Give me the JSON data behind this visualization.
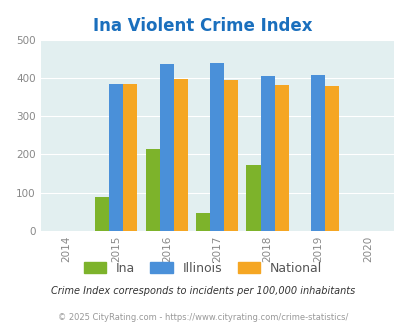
{
  "title": "Ina Violent Crime Index",
  "title_color": "#1a6fbd",
  "years": [
    2014,
    2015,
    2016,
    2017,
    2018,
    2019,
    2020
  ],
  "bar_years": [
    2015,
    2016,
    2017,
    2018,
    2019
  ],
  "ina_values": [
    90,
    215,
    47,
    172,
    0
  ],
  "illinois_values": [
    383,
    437,
    438,
    406,
    408
  ],
  "national_values": [
    383,
    398,
    394,
    381,
    379
  ],
  "ina_color": "#7db32b",
  "illinois_color": "#4a90d9",
  "national_color": "#f5a623",
  "bg_color": "#e2eff0",
  "fig_bg": "#ffffff",
  "ylim": [
    0,
    500
  ],
  "yticks": [
    0,
    100,
    200,
    300,
    400,
    500
  ],
  "legend_labels": [
    "Ina",
    "Illinois",
    "National"
  ],
  "footnote1": "Crime Index corresponds to incidents per 100,000 inhabitants",
  "footnote2": "© 2025 CityRating.com - https://www.cityrating.com/crime-statistics/",
  "footnote1_color": "#333333",
  "footnote2_color": "#999999",
  "bar_width": 0.28
}
